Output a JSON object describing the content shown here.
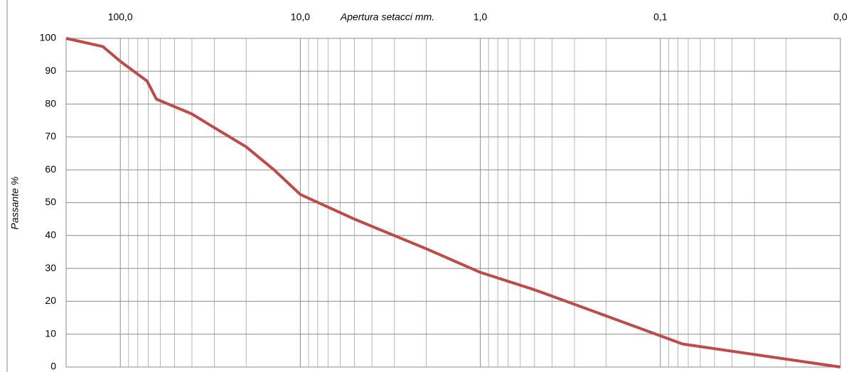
{
  "chart_data": {
    "type": "line",
    "x_title": "Apertura setacci mm.",
    "y_title": "Passante %",
    "log_x": true,
    "x_reversed": true,
    "xlim": [
      200,
      0.01
    ],
    "ylim": [
      0,
      100
    ],
    "xticks": [
      {
        "value": 100,
        "label": "100,0"
      },
      {
        "value": 10,
        "label": "10,0"
      },
      {
        "value": 1,
        "label": "1,0"
      },
      {
        "value": 0.1,
        "label": "0,1"
      },
      {
        "value": 0.01,
        "label": "0,0"
      }
    ],
    "x_minor_ticks": [
      200,
      90,
      80,
      70,
      60,
      50,
      40,
      30,
      20,
      9,
      8,
      7,
      6,
      5,
      4,
      3,
      2,
      0.9,
      0.8,
      0.7,
      0.6,
      0.5,
      0.4,
      0.3,
      0.2,
      0.09,
      0.08,
      0.07,
      0.06,
      0.05,
      0.04,
      0.03,
      0.02
    ],
    "yticks": [
      0,
      10,
      20,
      30,
      40,
      50,
      60,
      70,
      80,
      90,
      100
    ],
    "grid": true,
    "series": [
      {
        "color": "#be4b48",
        "x": [
          200,
          125,
          100,
          71,
          63,
          40,
          31.5,
          20,
          14,
          10,
          5,
          2,
          1,
          0.5,
          0.25,
          0.1,
          0.075,
          0.01
        ],
        "values": [
          100,
          97.5,
          93,
          87,
          81.5,
          77,
          73.5,
          67,
          60,
          52.5,
          45,
          36,
          28.8,
          23.5,
          17.5,
          9.5,
          7,
          0
        ]
      }
    ]
  }
}
